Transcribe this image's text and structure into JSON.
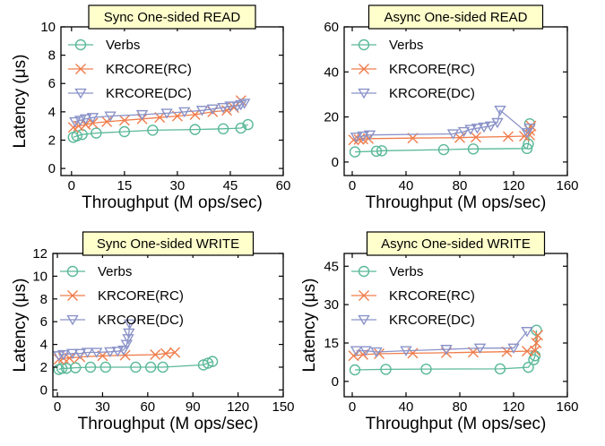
{
  "chart_data": [
    {
      "type": "line",
      "title": "Sync One-sided READ",
      "xlabel": "Throughput (M ops/sec)",
      "ylabel": "Latency (μs)",
      "xlim": [
        -3,
        60
      ],
      "ylim": [
        -0.5,
        10
      ],
      "xticks": [
        0,
        15,
        30,
        45,
        60
      ],
      "yticks": [
        0,
        2,
        4,
        6,
        8,
        10
      ],
      "legend": "top-left",
      "grid": false,
      "series": [
        {
          "name": "Verbs",
          "color": "#5ab899",
          "marker": "circle",
          "x": [
            0.5,
            1.5,
            3,
            7,
            15,
            23,
            35,
            43,
            48,
            50
          ],
          "y": [
            2.2,
            2.3,
            2.4,
            2.5,
            2.6,
            2.7,
            2.75,
            2.8,
            2.85,
            3.1
          ]
        },
        {
          "name": "KRCORE(RC)",
          "color": "#ef7d4c",
          "marker": "x",
          "x": [
            0.5,
            2,
            4,
            6,
            10,
            15,
            20,
            25,
            30,
            35,
            40,
            44,
            46,
            48
          ],
          "y": [
            2.9,
            3.0,
            3.1,
            3.2,
            3.3,
            3.4,
            3.5,
            3.6,
            3.7,
            3.8,
            4.0,
            4.1,
            4.3,
            4.8
          ]
        },
        {
          "name": "KRCORE(DC)",
          "color": "#8b93c8",
          "marker": "triangle-down",
          "x": [
            1,
            2.5,
            4,
            6,
            11,
            20,
            27,
            32,
            37,
            40,
            43,
            45,
            47,
            48,
            49
          ],
          "y": [
            3.3,
            3.4,
            3.5,
            3.6,
            3.7,
            3.8,
            3.9,
            4.0,
            4.1,
            4.2,
            4.3,
            4.4,
            4.4,
            4.5,
            4.6
          ]
        }
      ]
    },
    {
      "type": "line",
      "title": "Async One-sided READ",
      "xlabel": "Throughput (M ops/sec)",
      "ylabel": "",
      "xlim": [
        -6,
        160
      ],
      "ylim": [
        -6,
        60
      ],
      "xticks": [
        0,
        40,
        80,
        120,
        160
      ],
      "yticks": [
        0,
        20,
        40,
        60
      ],
      "legend": "top-left",
      "grid": false,
      "series": [
        {
          "name": "Verbs",
          "color": "#5ab899",
          "marker": "circle",
          "x": [
            2,
            18,
            22,
            68,
            90,
            130,
            131,
            132
          ],
          "y": [
            4.5,
            4.8,
            5.0,
            5.5,
            5.8,
            6.0,
            8.0,
            17.0
          ]
        },
        {
          "name": "KRCORE(RC)",
          "color": "#ef7d4c",
          "marker": "x",
          "x": [
            1,
            5,
            8,
            12,
            45,
            80,
            92,
            116,
            128,
            132,
            132,
            133
          ],
          "y": [
            9.8,
            10.0,
            10.2,
            10.4,
            10.6,
            10.8,
            11.0,
            11.3,
            11.5,
            12.0,
            14.0,
            16.0
          ]
        },
        {
          "name": "KRCORE(DC)",
          "color": "#8b93c8",
          "marker": "triangle-down",
          "x": [
            3,
            8,
            13,
            75,
            83,
            88,
            93,
            98,
            103,
            108,
            110,
            130,
            132
          ],
          "y": [
            11,
            11.5,
            12,
            12.5,
            13.5,
            14.5,
            15,
            15.5,
            16,
            17.5,
            23,
            13,
            15
          ]
        }
      ]
    },
    {
      "type": "line",
      "title": "Sync One-sided WRITE",
      "xlabel": "Throughput (M ops/sec)",
      "ylabel": "Latency (μs)",
      "xlim": [
        -3,
        150
      ],
      "ylim": [
        -0.6,
        12
      ],
      "xticks": [
        0,
        30,
        60,
        90,
        120,
        150
      ],
      "yticks": [
        0,
        2,
        4,
        6,
        8,
        10,
        12
      ],
      "legend": "top-left",
      "grid": false,
      "series": [
        {
          "name": "Verbs",
          "color": "#5ab899",
          "marker": "circle",
          "x": [
            1,
            3,
            6,
            12,
            22,
            32,
            52,
            62,
            70,
            97,
            100,
            103
          ],
          "y": [
            1.8,
            1.9,
            1.9,
            1.95,
            2.0,
            2.0,
            2.0,
            2.0,
            2.0,
            2.2,
            2.35,
            2.5
          ]
        },
        {
          "name": "KRCORE(RC)",
          "color": "#ef7d4c",
          "marker": "x",
          "x": [
            1,
            4,
            8,
            15,
            30,
            45,
            65,
            72,
            78
          ],
          "y": [
            2.7,
            2.8,
            2.8,
            2.9,
            3.0,
            3.05,
            3.1,
            3.2,
            3.3
          ]
        },
        {
          "name": "KRCORE(DC)",
          "color": "#8b93c8",
          "marker": "triangle-down",
          "x": [
            1,
            4,
            10,
            15,
            20,
            26,
            35,
            40,
            44,
            46,
            47,
            47.5,
            48
          ],
          "y": [
            3.0,
            3.1,
            3.2,
            3.2,
            3.3,
            3.3,
            3.35,
            3.4,
            3.5,
            4.0,
            4.5,
            5.0,
            5.8
          ]
        }
      ]
    },
    {
      "type": "line",
      "title": "Async One-sided WRITE",
      "xlabel": "Throughput (M ops/sec)",
      "ylabel": "Latency (μs)",
      "xlim": [
        -6,
        160
      ],
      "ylim": [
        -6,
        50
      ],
      "xticks": [
        0,
        40,
        80,
        120,
        160
      ],
      "yticks": [
        0,
        15,
        30,
        45
      ],
      "legend": "top-left",
      "grid": false,
      "series": [
        {
          "name": "Verbs",
          "color": "#5ab899",
          "marker": "circle",
          "x": [
            2,
            25,
            55,
            110,
            131,
            135,
            136,
            137
          ],
          "y": [
            4.5,
            4.7,
            4.8,
            4.9,
            5.5,
            8.5,
            10.0,
            20.0
          ]
        },
        {
          "name": "KRCORE(RC)",
          "color": "#ef7d4c",
          "marker": "x",
          "x": [
            1,
            8,
            20,
            45,
            70,
            90,
            115,
            130,
            136,
            137,
            138
          ],
          "y": [
            10.0,
            10.5,
            10.8,
            11.0,
            11.2,
            11.4,
            11.6,
            11.8,
            12.0,
            15.0,
            18.0
          ]
        },
        {
          "name": "KRCORE(DC)",
          "color": "#8b93c8",
          "marker": "triangle-down",
          "x": [
            3,
            10,
            18,
            40,
            70,
            95,
            120,
            130
          ],
          "y": [
            12.0,
            12.0,
            11.5,
            12.0,
            12.5,
            13.0,
            13.0,
            19.5
          ]
        }
      ]
    }
  ]
}
